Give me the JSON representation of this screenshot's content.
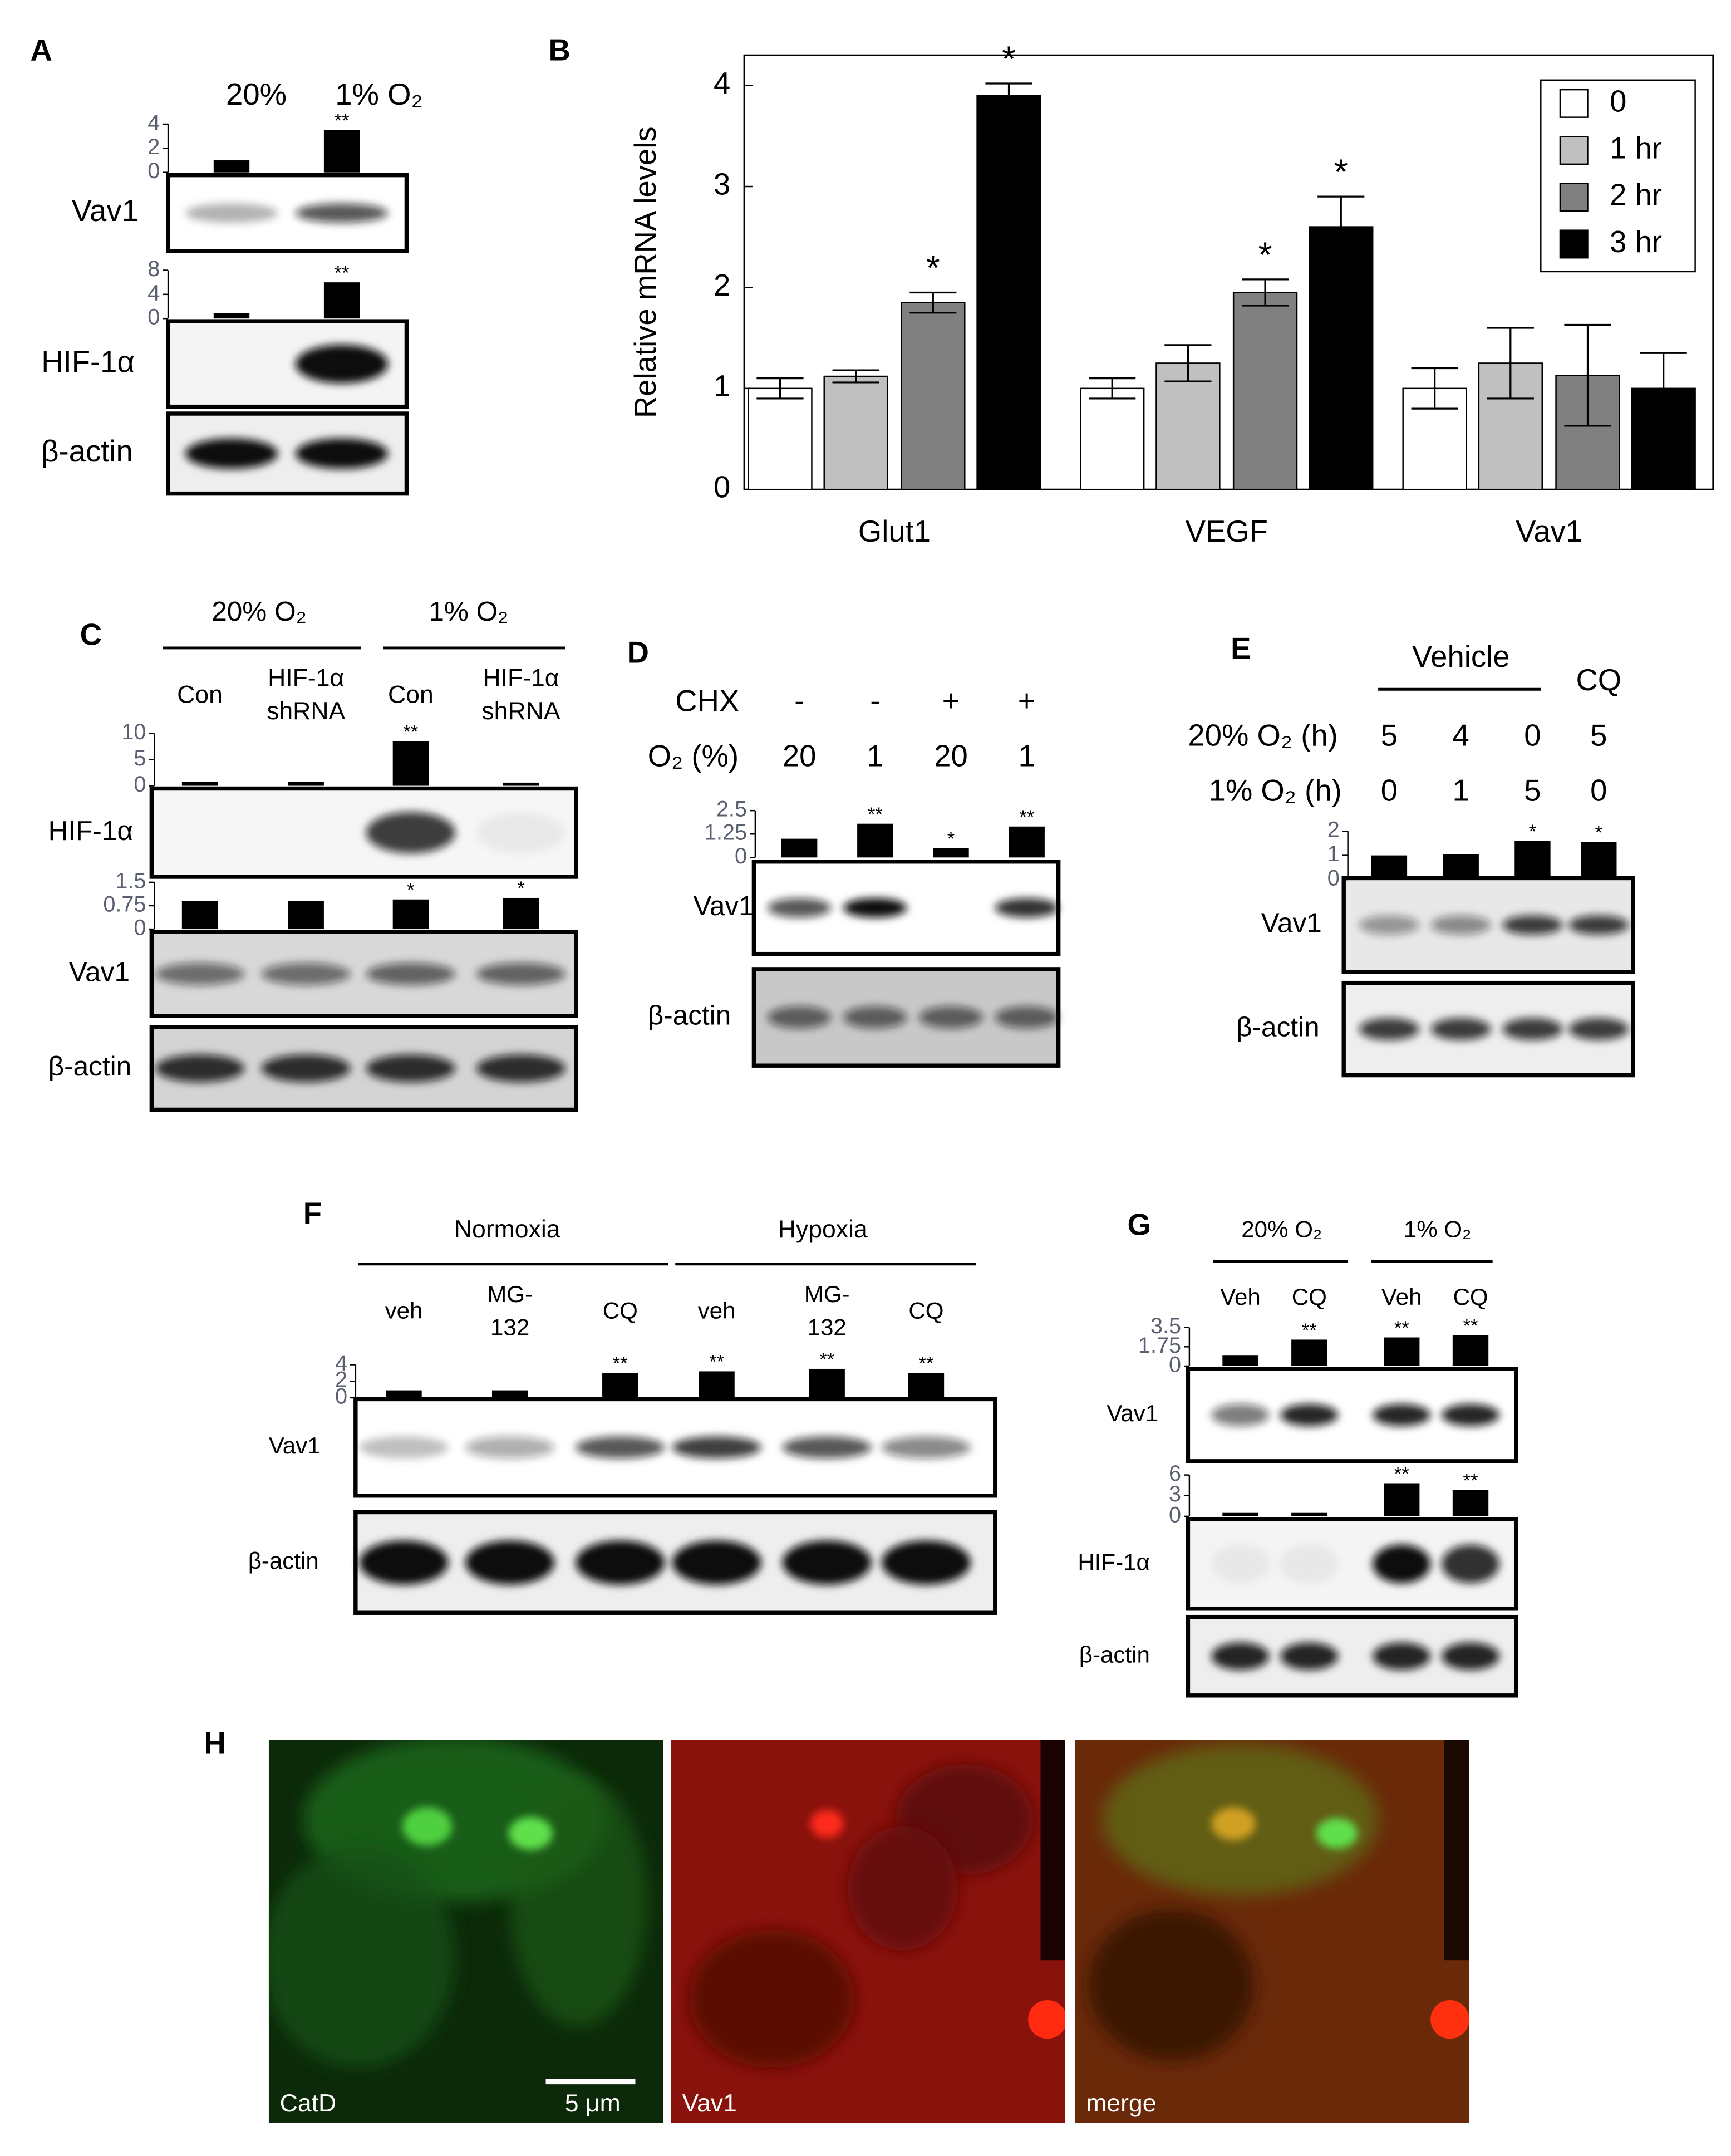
{
  "chart_data": [
    {
      "type": "bar",
      "color": "#000000",
      "ylim": [
        0,
        4
      ],
      "yticks": [
        0,
        2,
        4
      ],
      "values": [
        1,
        3.5
      ],
      "markers": [
        null,
        "**"
      ]
    },
    {
      "type": "bar",
      "color": "#000000",
      "ylim": [
        0,
        8
      ],
      "yticks": [
        0,
        4,
        8
      ],
      "values": [
        0.9,
        6
      ],
      "markers": [
        null,
        "**"
      ]
    },
    {
      "type": "bar",
      "categories": [
        "Glut1",
        "VEGF",
        "Vav1"
      ],
      "ylabel": "Relative mRNA levels",
      "ylim": [
        0,
        4.3
      ],
      "yticks": [
        0,
        1,
        2,
        3,
        4
      ],
      "legend": "upper right",
      "series": [
        {
          "name": "0",
          "color": "#ffffff",
          "values": [
            1.0,
            1.0,
            1.0
          ],
          "errors": [
            0.1,
            0.1,
            0.2
          ],
          "markers": [
            null,
            null,
            null
          ]
        },
        {
          "name": "1 hr",
          "color": "#c0c0c0",
          "values": [
            1.12,
            1.25,
            1.25
          ],
          "errors": [
            0.06,
            0.18,
            0.35
          ],
          "markers": [
            null,
            null,
            null
          ]
        },
        {
          "name": "2 hr",
          "color": "#808080",
          "values": [
            1.85,
            1.95,
            1.13
          ],
          "errors": [
            0.1,
            0.13,
            0.5
          ],
          "markers": [
            "*",
            "*",
            null
          ]
        },
        {
          "name": "3 hr",
          "color": "#000000",
          "values": [
            3.9,
            2.6,
            1.0
          ],
          "errors": [
            0.12,
            0.3,
            0.35
          ],
          "markers": [
            "*",
            "*",
            null
          ]
        }
      ]
    },
    {
      "type": "bar",
      "color": "#000000",
      "ylim": [
        0,
        10
      ],
      "yticks": [
        0,
        5,
        10
      ],
      "values": [
        0.8,
        0.7,
        8.5,
        0.6
      ],
      "markers": [
        null,
        null,
        "**",
        null
      ]
    },
    {
      "type": "bar",
      "color": "#000000",
      "ylim": [
        0,
        1.5
      ],
      "yticks": [
        0,
        0.75,
        1.5
      ],
      "values": [
        0.9,
        0.9,
        0.95,
        1.0
      ],
      "markers": [
        null,
        null,
        "*",
        "*"
      ]
    },
    {
      "type": "bar",
      "color": "#000000",
      "ylim": [
        0,
        2.5
      ],
      "yticks": [
        0,
        1.25,
        2.5
      ],
      "values": [
        1,
        1.8,
        0.5,
        1.65
      ],
      "markers": [
        null,
        "**",
        "*",
        "**"
      ]
    },
    {
      "type": "bar",
      "color": "#000000",
      "ylim": [
        0,
        2
      ],
      "yticks": [
        0,
        1,
        2
      ],
      "values": [
        1,
        1.05,
        1.6,
        1.55
      ],
      "markers": [
        null,
        null,
        "*",
        "*"
      ]
    },
    {
      "type": "bar",
      "color": "#000000",
      "ylim": [
        0,
        4
      ],
      "yticks": [
        0,
        2,
        4
      ],
      "values": [
        0.9,
        0.9,
        3,
        3.2,
        3.5,
        3
      ],
      "markers": [
        null,
        null,
        "**",
        "**",
        "**",
        "**"
      ]
    },
    {
      "type": "bar",
      "color": "#000000",
      "ylim": [
        0,
        3.5
      ],
      "yticks": [
        0,
        1.75,
        3.5
      ],
      "values": [
        1,
        2.4,
        2.6,
        2.8
      ],
      "markers": [
        null,
        "**",
        "**",
        "**"
      ]
    },
    {
      "type": "bar",
      "color": "#000000",
      "ylim": [
        0,
        6
      ],
      "yticks": [
        0,
        3,
        6
      ],
      "values": [
        0.5,
        0.5,
        4.8,
        3.8
      ],
      "markers": [
        null,
        null,
        "**",
        "**"
      ]
    }
  ],
  "figure": {
    "A": {
      "label": "A",
      "lanes": [
        [
          "20%"
        ],
        [
          "1% O₂"
        ]
      ],
      "blots": [
        "Vav1",
        "HIF-1α",
        "β-actin"
      ]
    },
    "B": {
      "label": "B"
    },
    "C": {
      "label": "C",
      "groups": [
        "20% O₂",
        "1% O₂"
      ],
      "lanes": [
        [
          "Con"
        ],
        [
          "HIF-1α",
          "shRNA"
        ],
        [
          "Con"
        ],
        [
          "HIF-1α",
          "shRNA"
        ]
      ],
      "blots": [
        "HIF-1α",
        "Vav1",
        "β-actin"
      ]
    },
    "D": {
      "label": "D",
      "rows": [
        {
          "name": "CHX",
          "cells": [
            "-",
            "-",
            "+",
            "+"
          ]
        },
        {
          "name": "O₂ (%)",
          "cells": [
            "20",
            "1",
            "20",
            "1"
          ]
        }
      ],
      "blots": [
        "Vav1",
        "β-actin"
      ]
    },
    "E": {
      "label": "E",
      "groups": [
        "Vehicle",
        "CQ"
      ],
      "rows": [
        {
          "name": "20% O₂ (h)",
          "cells": [
            "5",
            "4",
            "0",
            "5"
          ]
        },
        {
          "name": "1% O₂ (h)",
          "cells": [
            "0",
            "1",
            "5",
            "0"
          ]
        }
      ],
      "blots": [
        "Vav1",
        "β-actin"
      ]
    },
    "F": {
      "label": "F",
      "groups": [
        "Normoxia",
        "Hypoxia"
      ],
      "lanes": [
        [
          "veh"
        ],
        [
          "MG-",
          "132"
        ],
        [
          "CQ"
        ],
        [
          "veh"
        ],
        [
          "MG-",
          "132"
        ],
        [
          "CQ"
        ]
      ],
      "blots": [
        "Vav1",
        "β-actin"
      ]
    },
    "G": {
      "label": "G",
      "groups": [
        "20% O₂",
        "1% O₂"
      ],
      "lanes": [
        [
          "Veh"
        ],
        [
          "CQ"
        ],
        [
          "Veh"
        ],
        [
          "CQ"
        ]
      ],
      "blots": [
        "Vav1",
        "HIF-1α",
        "β-actin"
      ]
    },
    "H": {
      "label": "H",
      "images": [
        "CatD",
        "Vav1",
        "merge"
      ],
      "scale_bar": "5 μm"
    }
  }
}
